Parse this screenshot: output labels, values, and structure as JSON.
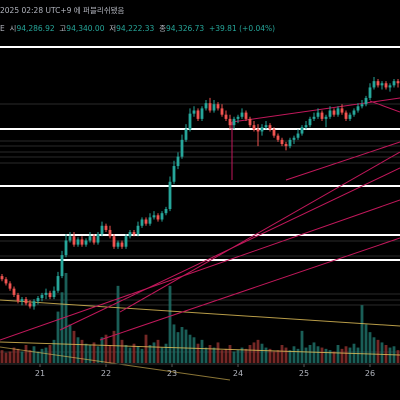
{
  "header": {
    "title": "2025 02:28 UTC+9 에 퍼블리쉬됐음",
    "symbol_tail": "E",
    "open_label": "시",
    "open": "94,286.92",
    "high_label": "고",
    "high": "94,340.00",
    "low_label": "저",
    "low": "94,222.33",
    "close_label": "종",
    "close": "94,326.73",
    "change": "+39.81 (+0.04%)"
  },
  "colors": {
    "up": "#26a69a",
    "down": "#ef5350",
    "level": "#ffffff",
    "trend": "#c2185b",
    "fib": "#e6c35a"
  },
  "chart_data": {
    "type": "candlestick",
    "x_ticks": [
      "21",
      "22",
      "23",
      "24",
      "25",
      "26"
    ],
    "y_range": [
      69,
      382
    ],
    "candles": [
      [
        300,
        303,
        298,
        305
      ],
      [
        303,
        307,
        301,
        309
      ],
      [
        307,
        312,
        305,
        314
      ],
      [
        312,
        318,
        310,
        320
      ],
      [
        318,
        324,
        316,
        326
      ],
      [
        324,
        322,
        320,
        328
      ],
      [
        322,
        326,
        320,
        328
      ],
      [
        326,
        329,
        323,
        331
      ],
      [
        329,
        324,
        322,
        332
      ],
      [
        324,
        321,
        319,
        327
      ],
      [
        321,
        318,
        316,
        324
      ],
      [
        318,
        316,
        312,
        322
      ],
      [
        316,
        320,
        314,
        322
      ],
      [
        320,
        314,
        310,
        322
      ],
      [
        314,
        300,
        296,
        316
      ],
      [
        300,
        280,
        276,
        302
      ],
      [
        280,
        266,
        260,
        282
      ],
      [
        266,
        262,
        258,
        268
      ],
      [
        262,
        270,
        258,
        272
      ],
      [
        270,
        265,
        263,
        272
      ],
      [
        265,
        270,
        262,
        272
      ],
      [
        270,
        266,
        264,
        272
      ],
      [
        266,
        262,
        258,
        268
      ],
      [
        262,
        268,
        260,
        270
      ],
      [
        268,
        260,
        258,
        270
      ],
      [
        260,
        252,
        248,
        262
      ],
      [
        252,
        256,
        250,
        258
      ],
      [
        256,
        262,
        252,
        264
      ],
      [
        262,
        272,
        260,
        274
      ],
      [
        272,
        268,
        266,
        274
      ],
      [
        268,
        272,
        266,
        274
      ],
      [
        272,
        262,
        260,
        274
      ],
      [
        262,
        258,
        256,
        264
      ],
      [
        258,
        260,
        256,
        262
      ],
      [
        260,
        252,
        248,
        262
      ],
      [
        252,
        246,
        244,
        254
      ],
      [
        246,
        250,
        244,
        252
      ],
      [
        250,
        244,
        240,
        252
      ],
      [
        244,
        242,
        238,
        246
      ],
      [
        242,
        246,
        240,
        248
      ],
      [
        246,
        240,
        238,
        248
      ],
      [
        240,
        236,
        234,
        242
      ],
      [
        236,
        210,
        205,
        238
      ],
      [
        210,
        195,
        190,
        212
      ],
      [
        195,
        186,
        182,
        198
      ],
      [
        186,
        170,
        165,
        188
      ],
      [
        170,
        160,
        155,
        172
      ],
      [
        160,
        145,
        140,
        162
      ],
      [
        145,
        142,
        138,
        148
      ],
      [
        142,
        150,
        140,
        152
      ],
      [
        150,
        140,
        138,
        152
      ],
      [
        140,
        135,
        132,
        142
      ],
      [
        135,
        142,
        130,
        144
      ],
      [
        142,
        136,
        132,
        144
      ],
      [
        136,
        140,
        134,
        142
      ],
      [
        140,
        146,
        136,
        148
      ],
      [
        146,
        150,
        142,
        152
      ],
      [
        150,
        156,
        146,
        160
      ],
      [
        156,
        150,
        148,
        160
      ],
      [
        150,
        148,
        146,
        154
      ],
      [
        148,
        144,
        140,
        150
      ],
      [
        144,
        150,
        142,
        152
      ],
      [
        150,
        156,
        148,
        158
      ],
      [
        156,
        160,
        152,
        162
      ],
      [
        160,
        162,
        155,
        176
      ],
      [
        162,
        158,
        155,
        166
      ],
      [
        158,
        156,
        152,
        160
      ],
      [
        156,
        160,
        154,
        162
      ],
      [
        160,
        166,
        158,
        168
      ],
      [
        166,
        170,
        164,
        172
      ],
      [
        170,
        174,
        168,
        176
      ],
      [
        174,
        176,
        172,
        180
      ],
      [
        176,
        170,
        168,
        178
      ],
      [
        170,
        168,
        166,
        174
      ],
      [
        168,
        164,
        160,
        170
      ],
      [
        164,
        158,
        156,
        166
      ],
      [
        158,
        156,
        152,
        160
      ],
      [
        156,
        150,
        148,
        158
      ],
      [
        150,
        148,
        144,
        152
      ],
      [
        148,
        144,
        140,
        150
      ],
      [
        144,
        150,
        142,
        152
      ],
      [
        150,
        148,
        146,
        158
      ],
      [
        148,
        142,
        138,
        150
      ],
      [
        142,
        146,
        140,
        148
      ],
      [
        146,
        140,
        138,
        148
      ],
      [
        140,
        144,
        136,
        146
      ],
      [
        144,
        150,
        142,
        152
      ],
      [
        150,
        146,
        144,
        152
      ],
      [
        146,
        142,
        140,
        148
      ],
      [
        142,
        138,
        135,
        144
      ],
      [
        138,
        136,
        132,
        140
      ],
      [
        136,
        130,
        128,
        138
      ],
      [
        130,
        120,
        116,
        132
      ],
      [
        120,
        114,
        110,
        122
      ],
      [
        114,
        118,
        112,
        120
      ],
      [
        118,
        116,
        114,
        122
      ],
      [
        116,
        120,
        114,
        122
      ],
      [
        120,
        118,
        116,
        124
      ],
      [
        118,
        114,
        112,
        120
      ],
      [
        114,
        116,
        112,
        120
      ]
    ],
    "volumes": [
      10,
      8,
      9,
      12,
      11,
      9,
      14,
      10,
      13,
      9,
      11,
      12,
      14,
      18,
      40,
      55,
      70,
      30,
      25,
      20,
      18,
      15,
      14,
      16,
      13,
      20,
      22,
      14,
      25,
      60,
      18,
      14,
      12,
      15,
      13,
      11,
      22,
      14,
      16,
      18,
      12,
      15,
      60,
      30,
      24,
      28,
      26,
      22,
      20,
      15,
      18,
      12,
      14,
      12,
      16,
      10,
      11,
      14,
      9,
      10,
      12,
      11,
      14,
      16,
      18,
      15,
      12,
      11,
      9,
      10,
      14,
      12,
      10,
      13,
      11,
      25,
      12,
      14,
      16,
      13,
      12,
      11,
      10,
      9,
      14,
      11,
      13,
      12,
      15,
      12,
      45,
      30,
      24,
      20,
      18,
      16,
      14,
      12,
      13,
      10
    ]
  }
}
